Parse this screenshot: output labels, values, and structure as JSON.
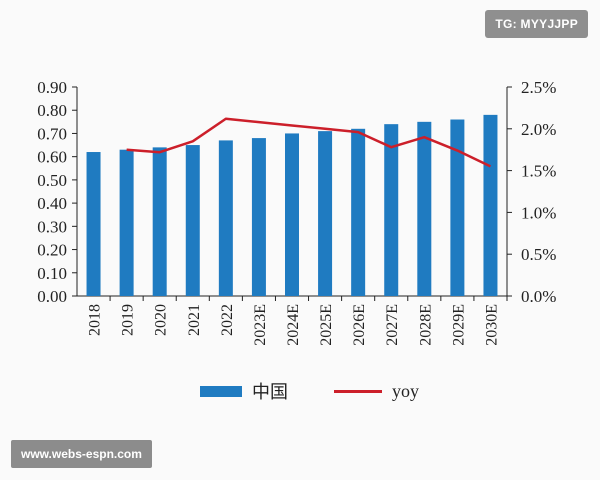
{
  "watermark": {
    "tag": "TG: MYYJJPP",
    "url": "www.webs-espn.com"
  },
  "colors": {
    "bar": "#1f7bc1",
    "line": "#cc1f2a",
    "axis": "#222222",
    "text": "#222222"
  },
  "chart_data": {
    "type": "bar",
    "categories": [
      "2018",
      "2019",
      "2020",
      "2021",
      "2022",
      "2023E",
      "2024E",
      "2025E",
      "2026E",
      "2027E",
      "2028E",
      "2029E",
      "2030E"
    ],
    "series": [
      {
        "name": "中国",
        "type": "bar",
        "axis": "left",
        "values": [
          0.62,
          0.63,
          0.64,
          0.65,
          0.67,
          0.68,
          0.7,
          0.71,
          0.72,
          0.74,
          0.75,
          0.76,
          0.78
        ]
      },
      {
        "name": "yoy",
        "type": "line",
        "axis": "right",
        "values": [
          null,
          1.75,
          1.72,
          1.85,
          2.12,
          2.08,
          2.04,
          2.0,
          1.96,
          1.78,
          1.9,
          1.74,
          1.55
        ]
      }
    ],
    "y_left": {
      "ticks": [
        "0.00",
        "0.10",
        "0.20",
        "0.30",
        "0.40",
        "0.50",
        "0.60",
        "0.70",
        "0.80",
        "0.90"
      ],
      "ylim": [
        0,
        0.9
      ]
    },
    "y_right": {
      "ticks": [
        "0.0%",
        "0.5%",
        "1.0%",
        "1.5%",
        "2.0%",
        "2.5%"
      ],
      "ylim": [
        0,
        2.5
      ]
    },
    "legend": "bottom-center",
    "grid": false
  }
}
